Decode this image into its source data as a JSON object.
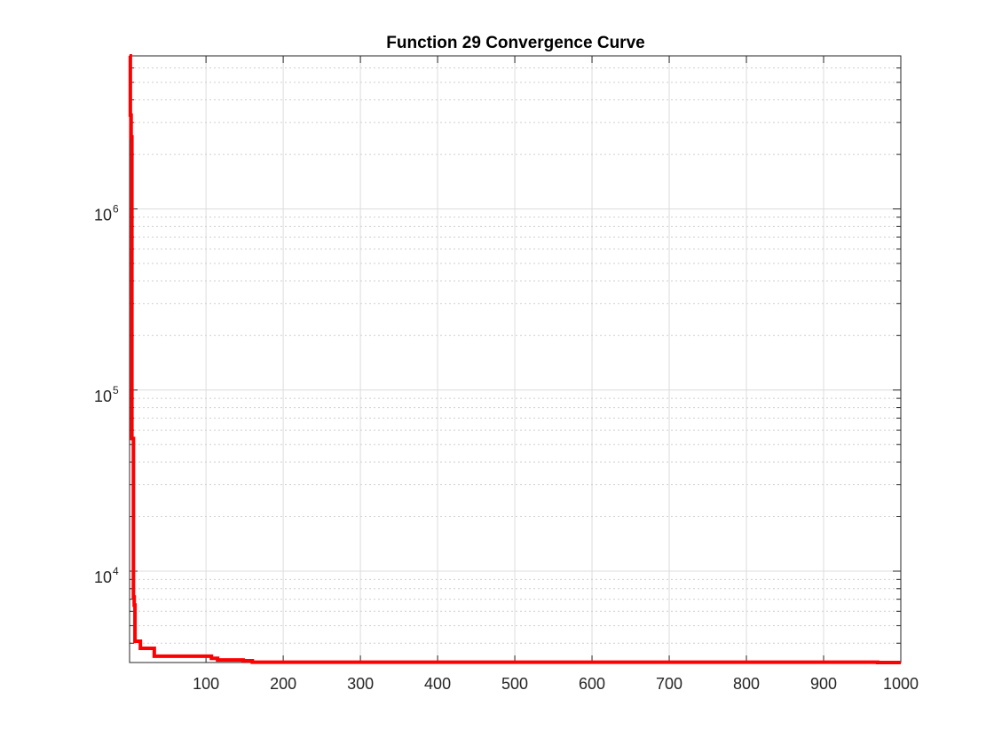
{
  "chart_data": {
    "type": "line",
    "title": "Function 29 Convergence Curve",
    "xlabel": "",
    "ylabel": "",
    "xlim": [
      1,
      1000
    ],
    "ylim": [
      3130,
      7000000
    ],
    "yscale": "log",
    "grid": true,
    "x_ticks": [
      100,
      200,
      300,
      400,
      500,
      600,
      700,
      800,
      900,
      1000
    ],
    "x_tick_labels": [
      "100",
      "200",
      "300",
      "400",
      "500",
      "600",
      "700",
      "800",
      "900",
      "1000"
    ],
    "y_ticks": [
      10000,
      100000,
      1000000
    ],
    "y_tick_labels": [
      {
        "base": "10",
        "exp": "4"
      },
      {
        "base": "10",
        "exp": "5"
      },
      {
        "base": "10",
        "exp": "6"
      }
    ],
    "series": [
      {
        "color": "#ff0000",
        "step": true,
        "x": [
          1,
          2,
          3,
          4,
          5,
          6,
          7,
          8,
          9,
          15,
          20,
          33,
          107,
          115,
          148,
          160,
          200,
          400,
          600,
          800,
          960,
          970,
          1000
        ],
        "y": [
          7000000,
          3300000,
          2500000,
          54000,
          54000,
          7200,
          6500,
          4100,
          4100,
          3750,
          3750,
          3390,
          3300,
          3235,
          3200,
          3145,
          3145,
          3145,
          3145,
          3145,
          3145,
          3130,
          3130
        ]
      }
    ]
  }
}
